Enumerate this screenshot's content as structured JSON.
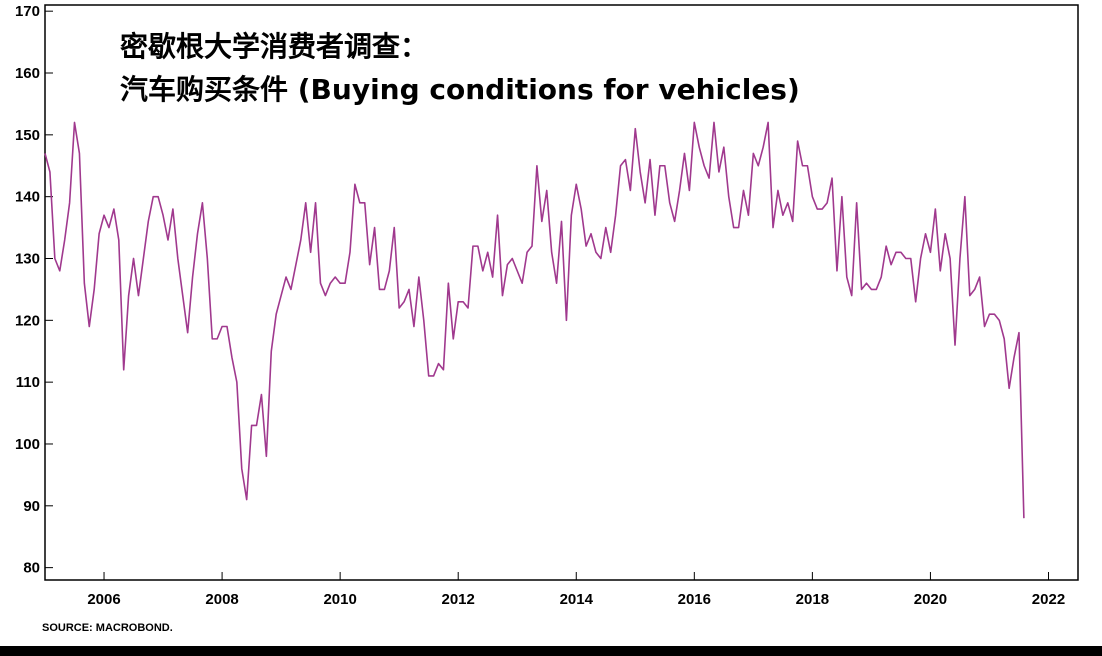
{
  "chart_data": {
    "type": "line",
    "title_line1": "密歇根大学消费者调查：",
    "title_line2": "汽车购买条件 (Buying conditions for vehicles)",
    "source": "SOURCE: MACROBOND.",
    "xlabel": "",
    "ylabel": "",
    "xlim": [
      2005.0,
      2022.5
    ],
    "ylim": [
      78,
      171
    ],
    "x_ticks": [
      2006,
      2008,
      2010,
      2012,
      2014,
      2016,
      2018,
      2020,
      2022
    ],
    "y_ticks": [
      80,
      90,
      100,
      110,
      120,
      130,
      140,
      150,
      160,
      170
    ],
    "grid": false,
    "line_color": "#a0398e",
    "series": [
      {
        "name": "Buying conditions for vehicles",
        "start_year": 2005.0,
        "step": 0.0833333,
        "values": [
          147,
          144,
          130,
          128,
          133,
          139,
          152,
          147,
          126,
          119,
          125,
          134,
          137,
          135,
          138,
          133,
          112,
          124,
          130,
          124,
          130,
          136,
          140,
          140,
          137,
          133,
          138,
          130,
          124,
          118,
          127,
          134,
          139,
          130,
          117,
          117,
          119,
          119,
          114,
          110,
          96,
          91,
          103,
          103,
          108,
          98,
          115,
          121,
          124,
          127,
          125,
          129,
          133,
          139,
          131,
          139,
          126,
          124,
          126,
          127,
          126,
          126,
          131,
          142,
          139,
          139,
          129,
          135,
          125,
          125,
          128,
          135,
          122,
          123,
          125,
          119,
          127,
          120,
          111,
          111,
          113,
          112,
          126,
          117,
          123,
          123,
          122,
          132,
          132,
          128,
          131,
          127,
          137,
          124,
          129,
          130,
          128,
          126,
          131,
          132,
          145,
          136,
          141,
          131,
          126,
          136,
          120,
          137,
          142,
          138,
          132,
          134,
          131,
          130,
          135,
          131,
          137,
          145,
          146,
          141,
          151,
          144,
          139,
          146,
          137,
          145,
          145,
          139,
          136,
          141,
          147,
          141,
          152,
          148,
          145,
          143,
          152,
          144,
          148,
          140,
          135,
          135,
          141,
          137,
          147,
          145,
          148,
          152,
          135,
          141,
          137,
          139,
          136,
          149,
          145,
          145,
          140,
          138,
          138,
          139,
          143,
          128,
          140,
          127,
          124,
          139,
          125,
          126,
          125,
          125,
          127,
          132,
          129,
          131,
          131,
          130,
          130,
          123,
          130,
          134,
          131,
          138,
          128,
          134,
          130,
          116,
          130,
          140,
          124,
          125,
          127,
          119,
          121,
          121,
          120,
          117,
          109,
          114,
          118,
          88
        ]
      }
    ]
  }
}
